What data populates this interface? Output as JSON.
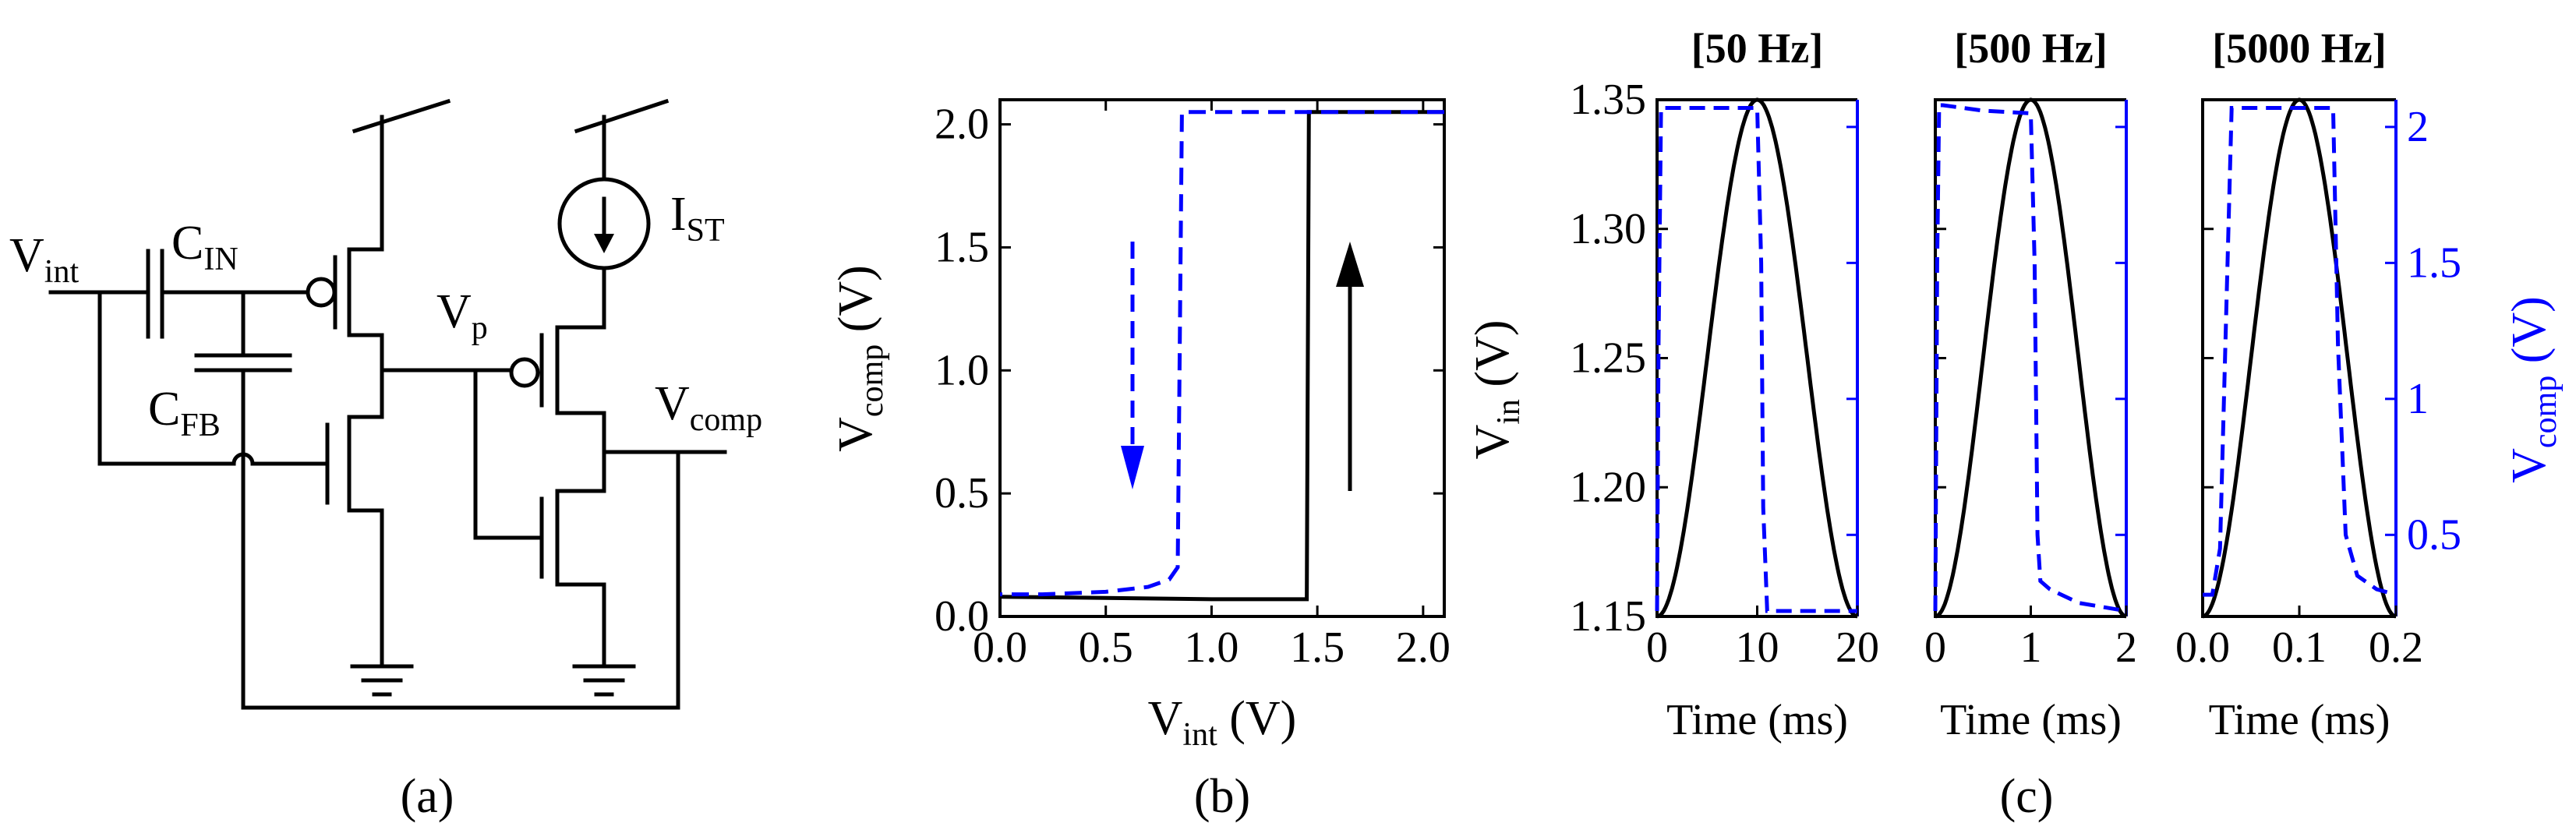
{
  "colors": {
    "primary": "#000000",
    "secondary": "#0000ff"
  },
  "panel_a": {
    "caption": "(a)",
    "labels": {
      "vint": "V",
      "vint_sub": "int",
      "cin": "C",
      "cin_sub": "IN",
      "cfb": "C",
      "cfb_sub": "FB",
      "vp": "V",
      "vp_sub": "p",
      "ist": "I",
      "ist_sub": "ST",
      "vcomp": "V",
      "vcomp_sub": "comp"
    }
  },
  "panel_b": {
    "caption": "(b)",
    "xlabel": "V",
    "xlabel_sub": "int",
    "xlabel_unit": " (V)",
    "ylabel": "V",
    "ylabel_sub": "comp",
    "ylabel_unit": " (V)",
    "xticks": [
      "0.0",
      "0.5",
      "1.0",
      "1.5",
      "2.0"
    ],
    "yticks": [
      "0.0",
      "0.5",
      "1.0",
      "1.5",
      "2.0"
    ]
  },
  "panel_c": {
    "caption": "(c)",
    "titles": [
      "[50 Hz]",
      "[500 Hz]",
      "[5000 Hz]"
    ],
    "xlabel": "Time (ms)",
    "ylabel_left": "V",
    "ylabel_left_sub": "in",
    "ylabel_left_unit": " (V)",
    "ylabel_right": "V",
    "ylabel_right_sub": "comp",
    "ylabel_right_unit": " (V)",
    "yticks_left": [
      "1.15",
      "1.20",
      "1.25",
      "1.30",
      "1.35"
    ],
    "yticks_right": [
      "0.5",
      "1",
      "1.5",
      "2"
    ],
    "xticks": [
      [
        "0",
        "10",
        "20"
      ],
      [
        "0",
        "1",
        "2"
      ],
      [
        "0.0",
        "0.1",
        "0.2"
      ]
    ]
  },
  "chart_data": [
    {
      "type": "line",
      "title": "",
      "xlabel": "Vint (V)",
      "ylabel": "Vcomp (V)",
      "xlim": [
        0,
        2.1
      ],
      "ylim": [
        0,
        2.1
      ],
      "series": [
        {
          "color": "#000000",
          "style": "solid",
          "direction": "up",
          "x": [
            0.0,
            0.5,
            1.0,
            1.4,
            1.45,
            1.46,
            2.1
          ],
          "y": [
            0.08,
            0.075,
            0.07,
            0.07,
            0.07,
            2.05,
            2.05
          ]
        },
        {
          "color": "#0000ff",
          "style": "dashed",
          "direction": "down",
          "x": [
            2.1,
            1.5,
            1.0,
            0.86,
            0.84,
            0.8,
            0.7,
            0.5,
            0.2,
            0.0
          ],
          "y": [
            2.05,
            2.05,
            2.05,
            2.05,
            0.2,
            0.15,
            0.12,
            0.1,
            0.09,
            0.09
          ]
        }
      ]
    },
    {
      "type": "line",
      "title": "[50 Hz]",
      "xlabel": "Time (ms)",
      "xlim": [
        0,
        20
      ],
      "ylim_left": [
        1.15,
        1.35
      ],
      "ylim_right": [
        0.2,
        2.1
      ],
      "series": [
        {
          "axis": "left",
          "color": "#000000",
          "style": "solid",
          "shape": "cosine",
          "period": 20,
          "min": 1.15,
          "max": 1.35
        },
        {
          "axis": "right",
          "color": "#0000ff",
          "style": "dashed",
          "x": [
            0,
            0.15,
            0.4,
            1,
            5,
            10,
            10.4,
            10.6,
            11,
            20
          ],
          "y": [
            0.22,
            1.2,
            2.07,
            2.07,
            2.07,
            2.07,
            1.5,
            0.6,
            0.22,
            0.22
          ]
        }
      ]
    },
    {
      "type": "line",
      "title": "[500 Hz]",
      "xlabel": "Time (ms)",
      "xlim": [
        0,
        2
      ],
      "ylim_left": [
        1.15,
        1.35
      ],
      "ylim_right": [
        0.2,
        2.1
      ],
      "series": [
        {
          "axis": "left",
          "color": "#000000",
          "style": "solid",
          "shape": "cosine",
          "period": 2,
          "min": 1.15,
          "max": 1.35
        },
        {
          "axis": "right",
          "color": "#0000ff",
          "style": "dashed",
          "x": [
            0,
            0.02,
            0.04,
            0.08,
            0.5,
            1.0,
            1.04,
            1.07,
            1.1,
            1.2,
            1.5,
            2.0
          ],
          "y": [
            0.22,
            1.5,
            2.08,
            2.08,
            2.06,
            2.05,
            1.5,
            0.5,
            0.33,
            0.3,
            0.25,
            0.22
          ]
        }
      ]
    },
    {
      "type": "line",
      "title": "[5000 Hz]",
      "xlabel": "Time (ms)",
      "xlim": [
        0,
        0.2
      ],
      "ylim_left": [
        1.15,
        1.35
      ],
      "ylim_right": [
        0.2,
        2.1
      ],
      "series": [
        {
          "axis": "left",
          "color": "#000000",
          "style": "solid",
          "shape": "cosine",
          "period": 0.2,
          "min": 1.15,
          "max": 1.35
        },
        {
          "axis": "right",
          "color": "#0000ff",
          "style": "dashed",
          "x": [
            0,
            0.01,
            0.018,
            0.025,
            0.03,
            0.04,
            0.1,
            0.135,
            0.14,
            0.148,
            0.16,
            0.18,
            0.2
          ],
          "y": [
            0.28,
            0.28,
            0.45,
            1.4,
            2.07,
            2.07,
            2.07,
            2.07,
            1.2,
            0.5,
            0.35,
            0.3,
            0.28
          ]
        }
      ]
    }
  ]
}
